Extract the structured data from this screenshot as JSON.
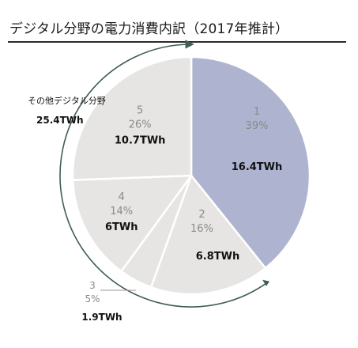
{
  "chart_data": {
    "type": "pie",
    "title": "デジタル分野の電力消費内訳（2017年推計）",
    "unit": "TWh",
    "slices": [
      {
        "index": "1",
        "percent": "39%",
        "value": 16.4,
        "value_label": "16.4TWh",
        "color": "#aeb4d0"
      },
      {
        "index": "2",
        "percent": "16%",
        "value": 6.8,
        "value_label": "6.8TWh",
        "color": "#e6e5e3"
      },
      {
        "index": "3",
        "percent": "5%",
        "value": 1.9,
        "value_label": "1.9TWh",
        "color": "#e6e5e3"
      },
      {
        "index": "4",
        "percent": "14%",
        "value": 6.0,
        "value_label": "6TWh",
        "color": "#e6e5e3"
      },
      {
        "index": "5",
        "percent": "26%",
        "value": 10.7,
        "value_label": "10.7TWh",
        "color": "#e6e5e3"
      }
    ],
    "group_annotation": {
      "label": "その他デジタル分野",
      "value_label": "25.4TWh"
    },
    "colors": {
      "highlight": "#aeb4d0",
      "other": "#e6e5e3",
      "divider": "#ffffff",
      "arc": "#3f5e57",
      "text_dark": "#111111",
      "text_muted": "#8a8a8a"
    }
  }
}
